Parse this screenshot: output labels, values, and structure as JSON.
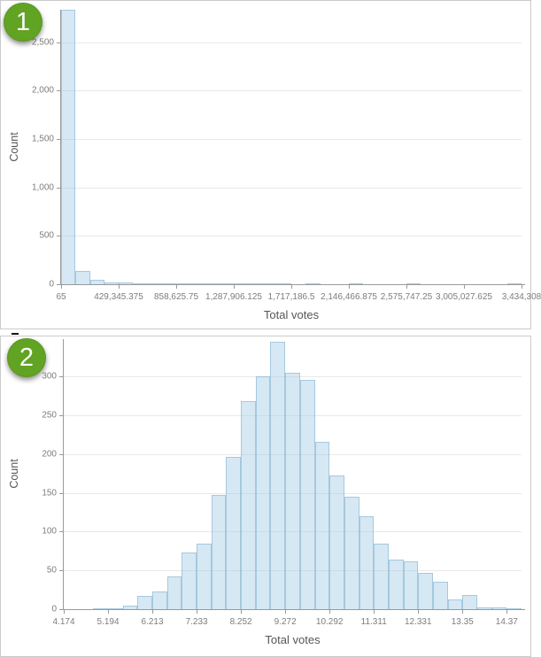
{
  "panels": [
    {
      "badge_label": "1"
    },
    {
      "badge_label": "2"
    }
  ],
  "colors": {
    "badge_green": "#61a322",
    "bar_fill": "rgba(157,201,226,0.42)",
    "bar_stroke": "rgba(125,175,205,0.55)",
    "grid": "#e9e9e9",
    "axis": "#999999",
    "tick_label": "#7d7d7d",
    "axis_title": "#565656",
    "panel_border": "#cbcbcb"
  },
  "chart_data": [
    {
      "type": "bar",
      "subtype": "histogram",
      "title": "",
      "xlabel": "Total votes",
      "ylabel": "Count",
      "grid": true,
      "legend": false,
      "bin_start": 65,
      "bin_width": 107320.094,
      "xlim": [
        65,
        3434308
      ],
      "ylim": [
        0,
        2836
      ],
      "values": [
        2836,
        140,
        50,
        22,
        14,
        5,
        10,
        8,
        4,
        3,
        2,
        2,
        1,
        1,
        1,
        1,
        0,
        1,
        0,
        0,
        1,
        0,
        0,
        0,
        1,
        0,
        0,
        0,
        0,
        0,
        0,
        1
      ],
      "yticks": [
        {
          "value": 0,
          "label": "0"
        },
        {
          "value": 500,
          "label": "500"
        },
        {
          "value": 1000,
          "label": "1,000"
        },
        {
          "value": 1500,
          "label": "1,500"
        },
        {
          "value": 2000,
          "label": "2,000"
        },
        {
          "value": 2500,
          "label": "2,500"
        }
      ],
      "xticks": [
        {
          "value": 65,
          "label": "65"
        },
        {
          "value": 429345.375,
          "label": "429,345.375"
        },
        {
          "value": 858625.75,
          "label": "858,625.75"
        },
        {
          "value": 1287906.125,
          "label": "1,287,906.125"
        },
        {
          "value": 1717186.5,
          "label": "1,717,186.5"
        },
        {
          "value": 2146466.875,
          "label": "2,146,466.875"
        },
        {
          "value": 2575747.25,
          "label": "2,575,747.25"
        },
        {
          "value": 3005027.625,
          "label": "3,005,027.625"
        },
        {
          "value": 3434308,
          "label": "3,434,308"
        }
      ]
    },
    {
      "type": "bar",
      "subtype": "histogram",
      "title": "",
      "xlabel": "Total votes",
      "ylabel": "Count",
      "grid": true,
      "legend": false,
      "bin_start": 4.174,
      "bin_width": 0.339866,
      "xlim": [
        4.174,
        14.7099
      ],
      "ylim": [
        0,
        348
      ],
      "values": [
        0,
        0,
        1,
        1,
        5,
        17,
        23,
        42,
        73,
        85,
        147,
        196,
        268,
        300,
        345,
        305,
        295,
        216,
        172,
        145,
        120,
        85,
        64,
        62,
        47,
        35,
        13,
        18,
        2,
        2,
        1
      ],
      "yticks": [
        {
          "value": 0,
          "label": "0"
        },
        {
          "value": 50,
          "label": "50"
        },
        {
          "value": 100,
          "label": "100"
        },
        {
          "value": 150,
          "label": "150"
        },
        {
          "value": 200,
          "label": "200"
        },
        {
          "value": 250,
          "label": "250"
        },
        {
          "value": 300,
          "label": "300"
        }
      ],
      "xticks": [
        {
          "value": 4.174,
          "label": "4.174"
        },
        {
          "value": 5.194,
          "label": "5.194"
        },
        {
          "value": 6.213,
          "label": "6.213"
        },
        {
          "value": 7.233,
          "label": "7.233"
        },
        {
          "value": 8.252,
          "label": "8.252"
        },
        {
          "value": 9.272,
          "label": "9.272"
        },
        {
          "value": 10.292,
          "label": "10.292"
        },
        {
          "value": 11.311,
          "label": "11.311"
        },
        {
          "value": 12.331,
          "label": "12.331"
        },
        {
          "value": 13.35,
          "label": "13.35"
        },
        {
          "value": 14.37,
          "label": "14.37"
        }
      ]
    }
  ]
}
